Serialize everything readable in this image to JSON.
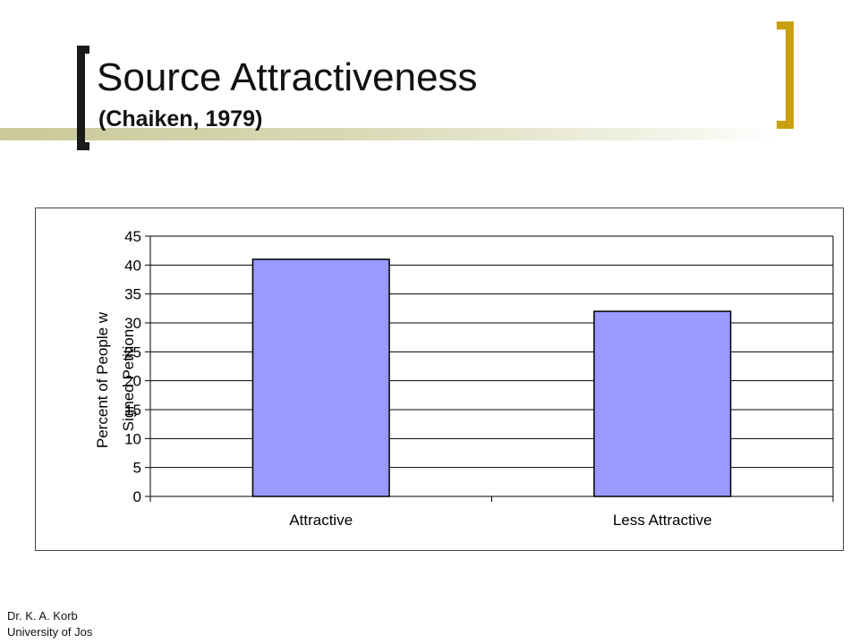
{
  "slide": {
    "title": "Source Attractiveness",
    "subtitle": "(Chaiken, 1979)",
    "footer_line1": "Dr. K. A. Korb",
    "footer_line2": "University of Jos"
  },
  "colors": {
    "bar_fill": "#9999ff",
    "left_bracket": "#1a1a1a",
    "right_bracket": "#c9a010",
    "accent_line": "#c9c99a"
  },
  "chart_data": {
    "type": "bar",
    "categories": [
      "Attractive",
      "Less Attractive"
    ],
    "values": [
      41,
      32
    ],
    "ylabel_line1": "Percent of People w",
    "ylabel_line2": "Signed Petition",
    "ylim": [
      0,
      45
    ],
    "yticks": [
      0,
      5,
      10,
      15,
      20,
      25,
      30,
      35,
      40,
      45
    ],
    "grid": true,
    "legend": "none"
  }
}
